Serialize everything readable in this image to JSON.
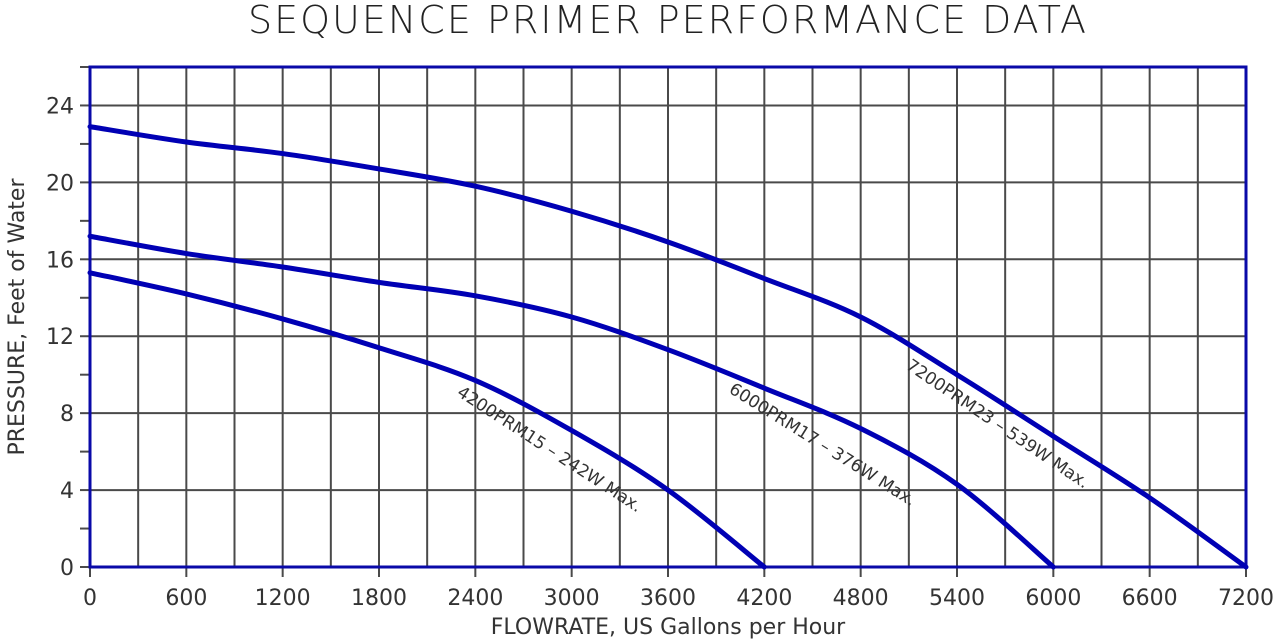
{
  "chart_data": {
    "type": "line",
    "title": "SEQUENCE PRIMER PERFORMANCE DATA",
    "xlabel": "FLOWRATE, US Gallons per Hour",
    "ylabel": "PRESSURE, Feet of Water",
    "xlim": [
      0,
      7200
    ],
    "ylim": [
      0,
      26
    ],
    "x_ticks": [
      0,
      600,
      1200,
      1800,
      2400,
      3000,
      3600,
      4200,
      4800,
      5400,
      6000,
      6600,
      7200
    ],
    "y_ticks": [
      0,
      4,
      8,
      12,
      16,
      20,
      24
    ],
    "x_minor_grid_step": 300,
    "y_minor_tick_step": 2,
    "grid": true,
    "legend": "inline curve labels",
    "colors": {
      "curve": "#0000b4",
      "frame": "#0a0aa8",
      "grid": "#4a4a4a",
      "text": "#333333"
    },
    "series": [
      {
        "name": "7200PRM23 - 539W Max.",
        "x": [
          0,
          600,
          1200,
          1800,
          2400,
          3000,
          3600,
          4200,
          4800,
          5400,
          6000,
          6600,
          7200
        ],
        "y": [
          22.9,
          22.1,
          21.5,
          20.7,
          19.8,
          18.5,
          16.9,
          15.0,
          13.0,
          10.0,
          6.8,
          3.6,
          0
        ]
      },
      {
        "name": "6000PRM17 - 376W Max.",
        "x": [
          0,
          600,
          1200,
          1800,
          2400,
          3000,
          3600,
          4200,
          4800,
          5400,
          6000
        ],
        "y": [
          17.2,
          16.3,
          15.6,
          14.8,
          14.1,
          13.0,
          11.3,
          9.3,
          7.2,
          4.3,
          0
        ]
      },
      {
        "name": "4200PRM15 - 242W Max.",
        "x": [
          0,
          600,
          1200,
          1800,
          2400,
          3000,
          3600,
          4200
        ],
        "y": [
          15.3,
          14.2,
          12.9,
          11.4,
          9.7,
          7.1,
          4.0,
          0
        ]
      }
    ]
  },
  "labels": {
    "title": "SEQUENCE PRIMER PERFORMANCE DATA",
    "xlabel": "FLOWRATE, US Gallons per Hour",
    "ylabel": "PRESSURE, Feet of Water",
    "curve_4200": "4200PRM15  –  242W Max.",
    "curve_6000": "6000PRM17  –  376W Max.",
    "curve_7200": "7200PRM23  –  539W Max."
  }
}
